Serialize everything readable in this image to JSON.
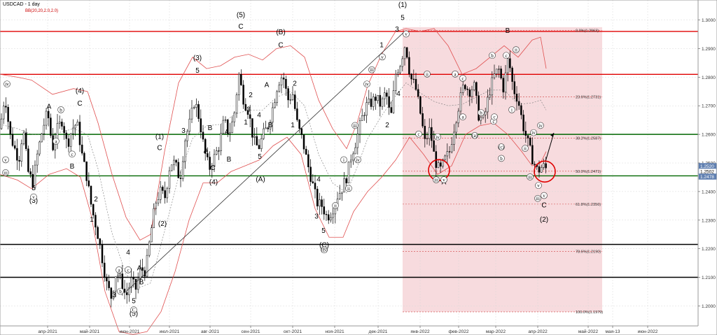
{
  "header": {
    "symbol": "USDCAD - 1 day",
    "indicator": "BB(20,20,2.0,2.0)"
  },
  "colors": {
    "resistance": "#e00000",
    "support_green": "#006600",
    "support_black": "#000000",
    "bb": "#e05050",
    "zone_fill": "#f6d5d8",
    "price_tag": "#5f7fb0"
  },
  "chart_data": {
    "type": "candlestick",
    "title": "USDCAD - 1 day",
    "ylim": [
      1.193,
      1.307
    ],
    "yticks": [
      1.3,
      1.29,
      1.28,
      1.27,
      1.26,
      1.25,
      1.24,
      1.23,
      1.22,
      1.21,
      1.2
    ],
    "ytick_labels": [
      "1.3000",
      "1.2900",
      "1.2800",
      "1.2700",
      "1.2600",
      "1.2500",
      "1.2400",
      "1.2300",
      "1.2200",
      "1.2100",
      "1.2000"
    ],
    "xticks": [
      "апр-2021",
      "май-2021",
      "июн-2021",
      "июл-2021",
      "авг-2021",
      "сен-2021",
      "окт-2021",
      "ноя-2021",
      "дек-2021",
      "янв-2022",
      "фев-2022",
      "мар-2022",
      "апр-2022",
      "май-2022",
      "мая-13",
      "июн-2022"
    ],
    "price_tags": [
      "1.2520",
      "1.2502",
      "1.2478"
    ],
    "horizontal_levels": [
      {
        "value": 1.296,
        "color": "red"
      },
      {
        "value": 1.281,
        "color": "red"
      },
      {
        "value": 1.26,
        "color": "green"
      },
      {
        "value": 1.2455,
        "color": "green"
      },
      {
        "value": 1.2215,
        "color": "black"
      },
      {
        "value": 1.21,
        "color": "black"
      }
    ],
    "fib_levels": [
      {
        "label": "0.0%(1.2963)",
        "value": 1.2963
      },
      {
        "label": "23.6%(1.2731)",
        "value": 1.2731
      },
      {
        "label": "38.2%(1.2587)",
        "value": 1.2587
      },
      {
        "label": "50.0%(1.2471)",
        "value": 1.2471
      },
      {
        "label": "61.8%(1.2356)",
        "value": 1.2356
      },
      {
        "label": "78.6%(1.2190)",
        "value": 1.219
      },
      {
        "label": "100.0%(1.1979)",
        "value": 1.1979
      }
    ],
    "price_path": [
      [
        0,
        1.262
      ],
      [
        7,
        1.274
      ],
      [
        14,
        1.26
      ],
      [
        21,
        1.255
      ],
      [
        27,
        1.251
      ],
      [
        33,
        1.262
      ],
      [
        40,
        1.247
      ],
      [
        47,
        1.243
      ],
      [
        54,
        1.254
      ],
      [
        61,
        1.262
      ],
      [
        68,
        1.268
      ],
      [
        75,
        1.255
      ],
      [
        82,
        1.262
      ],
      [
        89,
        1.265
      ],
      [
        96,
        1.256
      ],
      [
        103,
        1.262
      ],
      [
        110,
        1.264
      ],
      [
        117,
        1.253
      ],
      [
        124,
        1.245
      ],
      [
        131,
        1.234
      ],
      [
        138,
        1.227
      ],
      [
        145,
        1.218
      ],
      [
        152,
        1.208
      ],
      [
        159,
        1.203
      ],
      [
        166,
        1.212
      ],
      [
        173,
        1.209
      ],
      [
        180,
        1.203
      ],
      [
        187,
        1.209
      ],
      [
        194,
        1.206
      ],
      [
        201,
        1.213
      ],
      [
        208,
        1.212
      ],
      [
        215,
        1.225
      ],
      [
        222,
        1.236
      ],
      [
        229,
        1.24
      ],
      [
        236,
        1.238
      ],
      [
        243,
        1.25
      ],
      [
        250,
        1.25
      ],
      [
        257,
        1.244
      ],
      [
        264,
        1.258
      ],
      [
        271,
        1.264
      ],
      [
        278,
        1.272
      ],
      [
        285,
        1.265
      ],
      [
        292,
        1.254
      ],
      [
        299,
        1.248
      ],
      [
        306,
        1.252
      ],
      [
        313,
        1.256
      ],
      [
        320,
        1.265
      ],
      [
        327,
        1.26
      ],
      [
        334,
        1.266
      ],
      [
        341,
        1.281
      ],
      [
        348,
        1.272
      ],
      [
        355,
        1.268
      ],
      [
        362,
        1.258
      ],
      [
        369,
        1.255
      ],
      [
        376,
        1.26
      ],
      [
        383,
        1.263
      ],
      [
        390,
        1.27
      ],
      [
        397,
        1.278
      ],
      [
        404,
        1.281
      ],
      [
        411,
        1.272
      ],
      [
        418,
        1.274
      ],
      [
        425,
        1.263
      ],
      [
        432,
        1.258
      ],
      [
        439,
        1.25
      ],
      [
        446,
        1.243
      ],
      [
        453,
        1.236
      ],
      [
        460,
        1.235
      ],
      [
        467,
        1.231
      ],
      [
        474,
        1.233
      ],
      [
        481,
        1.238
      ],
      [
        488,
        1.241
      ],
      [
        495,
        1.245
      ],
      [
        502,
        1.253
      ],
      [
        509,
        1.258
      ],
      [
        516,
        1.265
      ],
      [
        523,
        1.27
      ],
      [
        530,
        1.271
      ],
      [
        537,
        1.273
      ],
      [
        544,
        1.27
      ],
      [
        551,
        1.275
      ],
      [
        558,
        1.265
      ],
      [
        565,
        1.281
      ],
      [
        572,
        1.285
      ],
      [
        579,
        1.292
      ],
      [
        586,
        1.28
      ],
      [
        593,
        1.277
      ],
      [
        600,
        1.268
      ],
      [
        607,
        1.257
      ],
      [
        614,
        1.262
      ],
      [
        621,
        1.251
      ],
      [
        628,
        1.247
      ],
      [
        635,
        1.251
      ],
      [
        642,
        1.254
      ],
      [
        649,
        1.263
      ],
      [
        656,
        1.271
      ],
      [
        663,
        1.278
      ],
      [
        670,
        1.275
      ],
      [
        677,
        1.277
      ],
      [
        684,
        1.266
      ],
      [
        691,
        1.265
      ],
      [
        698,
        1.274
      ],
      [
        705,
        1.28
      ],
      [
        712,
        1.283
      ],
      [
        719,
        1.276
      ],
      [
        726,
        1.287
      ],
      [
        733,
        1.276
      ],
      [
        740,
        1.272
      ],
      [
        747,
        1.263
      ],
      [
        754,
        1.257
      ],
      [
        761,
        1.251
      ],
      [
        768,
        1.247
      ],
      [
        775,
        1.249
      ],
      [
        780,
        1.248
      ]
    ],
    "bb_upper": [
      [
        0,
        1.281
      ],
      [
        25,
        1.28
      ],
      [
        45,
        1.279
      ],
      [
        75,
        1.274
      ],
      [
        105,
        1.276
      ],
      [
        125,
        1.275
      ],
      [
        140,
        1.264
      ],
      [
        160,
        1.246
      ],
      [
        180,
        1.231
      ],
      [
        200,
        1.223
      ],
      [
        215,
        1.225
      ],
      [
        235,
        1.254
      ],
      [
        255,
        1.278
      ],
      [
        275,
        1.287
      ],
      [
        295,
        1.283
      ],
      [
        315,
        1.284
      ],
      [
        335,
        1.287
      ],
      [
        355,
        1.288
      ],
      [
        375,
        1.286
      ],
      [
        395,
        1.29
      ],
      [
        415,
        1.291
      ],
      [
        435,
        1.287
      ],
      [
        455,
        1.272
      ],
      [
        475,
        1.262
      ],
      [
        495,
        1.255
      ],
      [
        510,
        1.264
      ],
      [
        525,
        1.277
      ],
      [
        545,
        1.288
      ],
      [
        565,
        1.296
      ],
      [
        580,
        1.297
      ],
      [
        600,
        1.296
      ],
      [
        620,
        1.297
      ],
      [
        640,
        1.291
      ],
      [
        660,
        1.281
      ],
      [
        680,
        1.283
      ],
      [
        700,
        1.287
      ],
      [
        720,
        1.291
      ],
      [
        740,
        1.287
      ],
      [
        760,
        1.293
      ],
      [
        772,
        1.294
      ],
      [
        780,
        1.283
      ]
    ],
    "bb_lower": [
      [
        0,
        1.246
      ],
      [
        25,
        1.244
      ],
      [
        45,
        1.241
      ],
      [
        70,
        1.246
      ],
      [
        95,
        1.248
      ],
      [
        115,
        1.245
      ],
      [
        130,
        1.232
      ],
      [
        150,
        1.205
      ],
      [
        170,
        1.191
      ],
      [
        190,
        1.19
      ],
      [
        210,
        1.191
      ],
      [
        230,
        1.198
      ],
      [
        250,
        1.212
      ],
      [
        270,
        1.23
      ],
      [
        290,
        1.243
      ],
      [
        310,
        1.243
      ],
      [
        330,
        1.247
      ],
      [
        350,
        1.249
      ],
      [
        370,
        1.251
      ],
      [
        390,
        1.256
      ],
      [
        410,
        1.259
      ],
      [
        430,
        1.253
      ],
      [
        450,
        1.234
      ],
      [
        470,
        1.224
      ],
      [
        490,
        1.224
      ],
      [
        505,
        1.233
      ],
      [
        525,
        1.24
      ],
      [
        545,
        1.245
      ],
      [
        565,
        1.251
      ],
      [
        585,
        1.259
      ],
      [
        605,
        1.253
      ],
      [
        625,
        1.246
      ],
      [
        645,
        1.249
      ],
      [
        665,
        1.26
      ],
      [
        685,
        1.263
      ],
      [
        705,
        1.264
      ],
      [
        725,
        1.26
      ],
      [
        745,
        1.254
      ],
      [
        760,
        1.249
      ],
      [
        772,
        1.25
      ],
      [
        780,
        1.254
      ]
    ],
    "trendline": [
      [
        180,
        1.205
      ],
      [
        578,
        1.296
      ]
    ],
    "projection_arrow": [
      [
        779,
        1.2505
      ],
      [
        791,
        1.2605
      ]
    ],
    "circles": [
      [
        627,
        1.2475
      ],
      [
        778,
        1.247
      ]
    ],
    "wave_labels": {
      "large": [
        {
          "t": "(3)",
          "x": 48,
          "y": 1.236
        },
        {
          "t": "5",
          "x": 48,
          "y": 1.2405
        },
        {
          "t": "(4)",
          "x": 114,
          "y": 1.2745
        },
        {
          "t": "C",
          "x": 114,
          "y": 1.27
        },
        {
          "t": "A",
          "x": 70,
          "y": 1.269
        },
        {
          "t": "B",
          "x": 103,
          "y": 1.248
        },
        {
          "t": "2",
          "x": 137,
          "y": 1.2365
        },
        {
          "t": "1",
          "x": 131,
          "y": 1.2295
        },
        {
          "t": "3",
          "x": 163,
          "y": 1.203
        },
        {
          "t": "4",
          "x": 183,
          "y": 1.218
        },
        {
          "t": "A",
          "x": 199,
          "y": 1.2125
        },
        {
          "t": "B",
          "x": 202,
          "y": 1.2075
        },
        {
          "t": "5",
          "x": 191,
          "y": 1.201
        },
        {
          "t": "(5)",
          "x": 191,
          "y": 1.1965
        },
        {
          "t": "(1)",
          "x": 228,
          "y": 1.2585
        },
        {
          "t": "C",
          "x": 228,
          "y": 1.2545
        },
        {
          "t": "(2)",
          "x": 232,
          "y": 1.228
        },
        {
          "t": "3",
          "x": 262,
          "y": 1.2605
        },
        {
          "t": "(3)",
          "x": 282,
          "y": 1.286
        },
        {
          "t": "5",
          "x": 282,
          "y": 1.2815
        },
        {
          "t": "A",
          "x": 294,
          "y": 1.2535
        },
        {
          "t": "B",
          "x": 300,
          "y": 1.2615
        },
        {
          "t": "C",
          "x": 304,
          "y": 1.2475
        },
        {
          "t": "(4)",
          "x": 305,
          "y": 1.2425
        },
        {
          "t": "A",
          "x": 324,
          "y": 1.26
        },
        {
          "t": "B",
          "x": 327,
          "y": 1.2505
        },
        {
          "t": "(5)",
          "x": 344,
          "y": 1.301
        },
        {
          "t": "C",
          "x": 344,
          "y": 1.297
        },
        {
          "t": "2",
          "x": 358,
          "y": 1.273
        },
        {
          "t": "1",
          "x": 351,
          "y": 1.2635
        },
        {
          "t": "3",
          "x": 355,
          "y": 1.268
        },
        {
          "t": "4",
          "x": 370,
          "y": 1.266
        },
        {
          "t": "5",
          "x": 371,
          "y": 1.2515
        },
        {
          "t": "(A)",
          "x": 372,
          "y": 1.2435
        },
        {
          "t": "A",
          "x": 381,
          "y": 1.2765
        },
        {
          "t": "B",
          "x": 386,
          "y": 1.2625
        },
        {
          "t": "(B)",
          "x": 401,
          "y": 1.295
        },
        {
          "t": "C",
          "x": 401,
          "y": 1.2905
        },
        {
          "t": "2",
          "x": 421,
          "y": 1.277
        },
        {
          "t": "1",
          "x": 418,
          "y": 1.2625
        },
        {
          "t": "4",
          "x": 455,
          "y": 1.2435
        },
        {
          "t": "3",
          "x": 452,
          "y": 1.2305
        },
        {
          "t": "5",
          "x": 462,
          "y": 1.2255
        },
        {
          "t": "(C)",
          "x": 463,
          "y": 1.2205
        },
        {
          "t": "1",
          "x": 545,
          "y": 1.2905
        },
        {
          "t": "2",
          "x": 553,
          "y": 1.2625
        },
        {
          "t": "3",
          "x": 567,
          "y": 1.296
        },
        {
          "t": "4",
          "x": 569,
          "y": 1.2735
        },
        {
          "t": "(1)",
          "x": 575,
          "y": 1.3045
        },
        {
          "t": "5",
          "x": 575,
          "y": 1.3
        },
        {
          "t": "A",
          "x": 634,
          "y": 1.2425
        },
        {
          "t": "B",
          "x": 725,
          "y": 1.2955
        },
        {
          "t": "C",
          "x": 777,
          "y": 1.2345
        },
        {
          "t": "(2)",
          "x": 777,
          "y": 1.2295
        }
      ],
      "small": [
        {
          "t": "iv",
          "x": 10,
          "y": 1.277
        },
        {
          "t": "v",
          "x": 8,
          "y": 1.2505
        },
        {
          "t": "iii",
          "x": 8,
          "y": 1.246
        },
        {
          "t": "b",
          "x": 87,
          "y": 1.268
        },
        {
          "t": "a",
          "x": 80,
          "y": 1.257
        },
        {
          "t": "c",
          "x": 103,
          "y": 1.2525
        },
        {
          "t": "v",
          "x": 48,
          "y": 1.2375
        },
        {
          "t": "a",
          "x": 170,
          "y": 1.212
        },
        {
          "t": "c",
          "x": 183,
          "y": 1.212
        },
        {
          "t": "b",
          "x": 172,
          "y": 1.2045
        },
        {
          "t": "C",
          "x": 191,
          "y": 1.198
        },
        {
          "t": "(B)",
          "x": 463,
          "y": 1.219
        },
        {
          "t": "ii",
          "x": 479,
          "y": 1.2345
        },
        {
          "t": "i",
          "x": 491,
          "y": 1.2505
        },
        {
          "t": "iv",
          "x": 511,
          "y": 1.2505
        },
        {
          "t": "ii",
          "x": 498,
          "y": 1.2405
        },
        {
          "t": "iii",
          "x": 507,
          "y": 1.2625
        },
        {
          "t": "iv",
          "x": 524,
          "y": 1.277
        },
        {
          "t": "v",
          "x": 546,
          "y": 1.2865
        },
        {
          "t": "v",
          "x": 580,
          "y": 1.2945
        },
        {
          "t": "iii",
          "x": 531,
          "y": 1.282
        },
        {
          "t": "ii",
          "x": 610,
          "y": 1.2805
        },
        {
          "t": "iv",
          "x": 625,
          "y": 1.2585
        },
        {
          "t": "c",
          "x": 598,
          "y": 1.2595
        },
        {
          "t": "iii",
          "x": 623,
          "y": 1.2435
        },
        {
          "t": "v",
          "x": 634,
          "y": 1.2435
        },
        {
          "t": "a",
          "x": 650,
          "y": 1.2805
        },
        {
          "t": "c",
          "x": 661,
          "y": 1.279
        },
        {
          "t": "a",
          "x": 661,
          "y": 1.2655
        },
        {
          "t": "b",
          "x": 687,
          "y": 1.267
        },
        {
          "t": "c",
          "x": 705,
          "y": 1.264
        },
        {
          "t": "(a)",
          "x": 678,
          "y": 1.259
        },
        {
          "t": "b",
          "x": 703,
          "y": 1.287
        },
        {
          "t": "c",
          "x": 723,
          "y": 1.287
        },
        {
          "t": "c",
          "x": 706,
          "y": 1.2655
        },
        {
          "t": "(c)",
          "x": 716,
          "y": 1.255
        },
        {
          "t": "b",
          "x": 716,
          "y": 1.251
        },
        {
          "t": "ii",
          "x": 737,
          "y": 1.289
        },
        {
          "t": "i",
          "x": 731,
          "y": 1.268
        },
        {
          "t": "iv",
          "x": 762,
          "y": 1.26
        },
        {
          "t": "ii",
          "x": 750,
          "y": 1.2545
        },
        {
          "t": "iv",
          "x": 772,
          "y": 1.2625
        },
        {
          "t": "iii",
          "x": 757,
          "y": 1.2445
        },
        {
          "t": "v",
          "x": 769,
          "y": 1.2415
        },
        {
          "t": "iii",
          "x": 768,
          "y": 1.237
        },
        {
          "t": "v",
          "x": 777,
          "y": 1.238
        }
      ]
    }
  }
}
